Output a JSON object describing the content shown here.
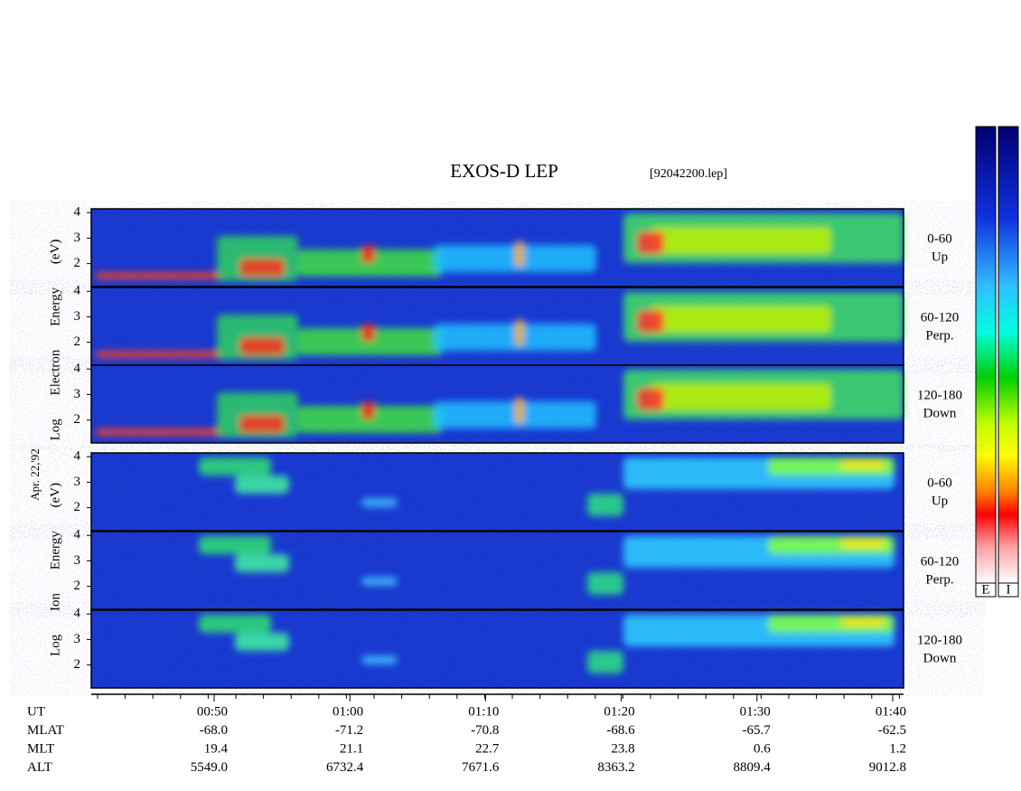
{
  "chart_data": {
    "type": "spectrogram",
    "title": "EXOS-D LEP",
    "file_label": "[92042200.lep]",
    "date_label": "Apr. 22,'92",
    "electron_ylabel": "Log Electron Energy (eV)",
    "ion_ylabel": "Log Ion Energy (eV)",
    "ylim": [
      1.1,
      4.15
    ],
    "yticks": [
      2,
      3,
      4
    ],
    "panels": [
      {
        "species": "electron",
        "angle": "0-60",
        "direction": "Up"
      },
      {
        "species": "electron",
        "angle": "60-120",
        "direction": "Perp."
      },
      {
        "species": "electron",
        "angle": "120-180",
        "direction": "Down"
      },
      {
        "species": "ion",
        "angle": "0-60",
        "direction": "Up"
      },
      {
        "species": "ion",
        "angle": "60-120",
        "direction": "Perp."
      },
      {
        "species": "ion",
        "angle": "120-180",
        "direction": "Down"
      }
    ],
    "ephemeris": [
      {
        "name": "UT",
        "values": [
          "00:50",
          "01:00",
          "01:10",
          "01:20",
          "01:30",
          "01:40"
        ]
      },
      {
        "name": "MLAT",
        "values": [
          "-68.0",
          "-71.2",
          "-70.8",
          "-68.6",
          "-65.7",
          "-62.5"
        ]
      },
      {
        "name": "MLT",
        "values": [
          "19.4",
          "21.1",
          "22.7",
          "23.8",
          "0.6",
          "1.2"
        ]
      },
      {
        "name": "ALT",
        "values": [
          "5549.0",
          "6732.4",
          "7671.6",
          "8363.2",
          "8809.4",
          "9012.8"
        ]
      }
    ],
    "colorbar_labels": [
      "E",
      "I"
    ]
  }
}
